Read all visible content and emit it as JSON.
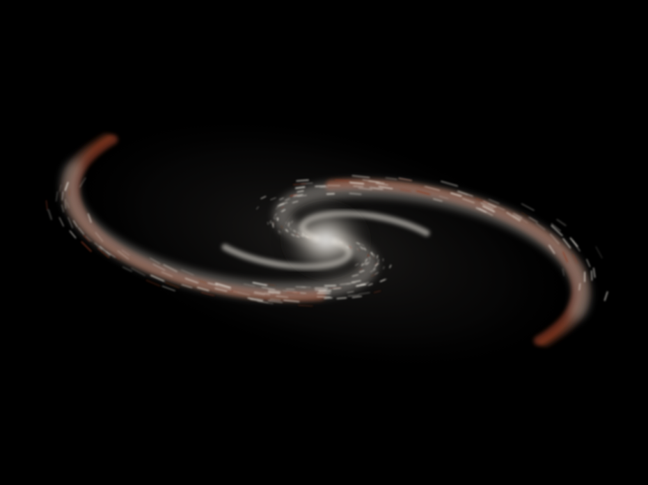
{
  "image": {
    "subject": "galaxy-swirl",
    "palette": {
      "background": "#000000",
      "core": "#f2ede4",
      "arm_light": "#c9c4bc",
      "arm_mid": "#6f6b66",
      "rim_rust": "#8a3b22",
      "rim_edge": "#5a2a1c"
    }
  }
}
